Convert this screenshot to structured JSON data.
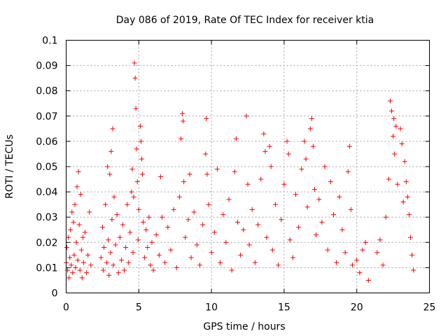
{
  "chart_data": {
    "type": "scatter",
    "title": "Day 086 of 2019, Rate Of TEC Index for receiver ktia",
    "xlabel": "GPS time / hours",
    "ylabel": "ROTI / TECUs",
    "xlim": [
      0,
      25
    ],
    "ylim": [
      0,
      0.1
    ],
    "x_ticks": [
      0,
      5,
      10,
      15,
      20,
      25
    ],
    "x_tick_labels": [
      "0",
      "5",
      "10",
      "15",
      "20",
      "25"
    ],
    "y_ticks": [
      0,
      0.01,
      0.02,
      0.03,
      0.04,
      0.05,
      0.06,
      0.07,
      0.08,
      0.09,
      0.1
    ],
    "y_tick_labels": [
      "0",
      "0.01",
      "0.02",
      "0.03",
      "0.04",
      "0.05",
      "0.06",
      "0.07",
      "0.08",
      "0.09",
      "0.1"
    ],
    "grid": true,
    "marker": "+",
    "color": "#ff0000",
    "series": [
      {
        "name": "ROTI",
        "points": [
          [
            0.0,
            0.012
          ],
          [
            0.05,
            0.018
          ],
          [
            0.1,
            0.009
          ],
          [
            0.15,
            0.022
          ],
          [
            0.2,
            0.006
          ],
          [
            0.25,
            0.014
          ],
          [
            0.3,
            0.025
          ],
          [
            0.35,
            0.011
          ],
          [
            0.4,
            0.032
          ],
          [
            0.45,
            0.008
          ],
          [
            0.5,
            0.028
          ],
          [
            0.55,
            0.015
          ],
          [
            0.6,
            0.035
          ],
          [
            0.65,
            0.01
          ],
          [
            0.7,
            0.02
          ],
          [
            0.75,
            0.042
          ],
          [
            0.8,
            0.013
          ],
          [
            0.85,
            0.048
          ],
          [
            0.9,
            0.027
          ],
          [
            0.95,
            0.009
          ],
          [
            1.0,
            0.039
          ],
          [
            1.05,
            0.017
          ],
          [
            1.1,
            0.006
          ],
          [
            1.15,
            0.022
          ],
          [
            1.2,
            0.012
          ],
          [
            1.3,
            0.024
          ],
          [
            1.4,
            0.008
          ],
          [
            1.5,
            0.015
          ],
          [
            1.6,
            0.032
          ],
          [
            1.7,
            0.011
          ],
          [
            2.4,
            0.014
          ],
          [
            2.5,
            0.026
          ],
          [
            2.55,
            0.009
          ],
          [
            2.6,
            0.018
          ],
          [
            2.7,
            0.035
          ],
          [
            2.8,
            0.012
          ],
          [
            2.85,
            0.05
          ],
          [
            2.9,
            0.021
          ],
          [
            2.95,
            0.007
          ],
          [
            3.0,
            0.047
          ],
          [
            3.05,
            0.016
          ],
          [
            3.1,
            0.056
          ],
          [
            3.15,
            0.029
          ],
          [
            3.2,
            0.065
          ],
          [
            3.25,
            0.011
          ],
          [
            3.3,
            0.038
          ],
          [
            3.4,
            0.019
          ],
          [
            3.5,
            0.031
          ],
          [
            3.6,
            0.008
          ],
          [
            3.7,
            0.022
          ],
          [
            3.8,
            0.013
          ],
          [
            3.9,
            0.027
          ],
          [
            4.0,
            0.009
          ],
          [
            4.1,
            0.018
          ],
          [
            4.2,
            0.035
          ],
          [
            4.3,
            0.012
          ],
          [
            4.4,
            0.024
          ],
          [
            4.5,
            0.04
          ],
          [
            4.55,
            0.049
          ],
          [
            4.6,
            0.016
          ],
          [
            4.65,
            0.038
          ],
          [
            4.7,
            0.091
          ],
          [
            4.75,
            0.085
          ],
          [
            4.8,
            0.073
          ],
          [
            4.85,
            0.057
          ],
          [
            4.9,
            0.044
          ],
          [
            4.95,
            0.021
          ],
          [
            5.0,
            0.033
          ],
          [
            5.1,
            0.066
          ],
          [
            5.15,
            0.06
          ],
          [
            5.2,
            0.053
          ],
          [
            5.25,
            0.047
          ],
          [
            5.3,
            0.028
          ],
          [
            5.4,
            0.014
          ],
          [
            5.5,
            0.025
          ],
          [
            5.6,
            0.018
          ],
          [
            5.7,
            0.03
          ],
          [
            5.8,
            0.011
          ],
          [
            5.9,
            0.02
          ],
          [
            6.0,
            0.009
          ],
          [
            6.2,
            0.023
          ],
          [
            6.4,
            0.015
          ],
          [
            6.5,
            0.046
          ],
          [
            6.6,
            0.03
          ],
          [
            6.8,
            0.012
          ],
          [
            7.0,
            0.026
          ],
          [
            7.2,
            0.017
          ],
          [
            7.4,
            0.033
          ],
          [
            7.6,
            0.01
          ],
          [
            7.8,
            0.038
          ],
          [
            7.9,
            0.061
          ],
          [
            8.0,
            0.071
          ],
          [
            8.05,
            0.068
          ],
          [
            8.1,
            0.044
          ],
          [
            8.2,
            0.022
          ],
          [
            8.4,
            0.029
          ],
          [
            8.5,
            0.047
          ],
          [
            8.6,
            0.014
          ],
          [
            8.8,
            0.032
          ],
          [
            9.0,
            0.019
          ],
          [
            9.2,
            0.011
          ],
          [
            9.4,
            0.027
          ],
          [
            9.6,
            0.055
          ],
          [
            9.65,
            0.069
          ],
          [
            9.7,
            0.047
          ],
          [
            9.8,
            0.035
          ],
          [
            10.0,
            0.016
          ],
          [
            10.2,
            0.024
          ],
          [
            10.4,
            0.049
          ],
          [
            10.6,
            0.012
          ],
          [
            10.8,
            0.031
          ],
          [
            11.0,
            0.02
          ],
          [
            11.2,
            0.037
          ],
          [
            11.4,
            0.009
          ],
          [
            11.6,
            0.048
          ],
          [
            11.7,
            0.061
          ],
          [
            11.8,
            0.028
          ],
          [
            12.0,
            0.015
          ],
          [
            12.2,
            0.025
          ],
          [
            12.4,
            0.07
          ],
          [
            12.5,
            0.043
          ],
          [
            12.6,
            0.019
          ],
          [
            12.8,
            0.033
          ],
          [
            13.0,
            0.012
          ],
          [
            13.2,
            0.027
          ],
          [
            13.4,
            0.045
          ],
          [
            13.6,
            0.063
          ],
          [
            13.7,
            0.056
          ],
          [
            13.8,
            0.022
          ],
          [
            14.0,
            0.058
          ],
          [
            14.1,
            0.05
          ],
          [
            14.2,
            0.017
          ],
          [
            14.4,
            0.035
          ],
          [
            14.6,
            0.011
          ],
          [
            14.8,
            0.029
          ],
          [
            15.0,
            0.043
          ],
          [
            15.2,
            0.06
          ],
          [
            15.3,
            0.055
          ],
          [
            15.4,
            0.021
          ],
          [
            15.6,
            0.014
          ],
          [
            15.8,
            0.039
          ],
          [
            16.0,
            0.026
          ],
          [
            16.2,
            0.049
          ],
          [
            16.4,
            0.06
          ],
          [
            16.5,
            0.053
          ],
          [
            16.6,
            0.034
          ],
          [
            16.8,
            0.065
          ],
          [
            16.9,
            0.069
          ],
          [
            17.0,
            0.058
          ],
          [
            17.1,
            0.041
          ],
          [
            17.2,
            0.023
          ],
          [
            17.4,
            0.037
          ],
          [
            17.6,
            0.028
          ],
          [
            17.8,
            0.05
          ],
          [
            18.0,
            0.017
          ],
          [
            18.2,
            0.044
          ],
          [
            18.4,
            0.031
          ],
          [
            18.6,
            0.012
          ],
          [
            18.8,
            0.038
          ],
          [
            19.0,
            0.025
          ],
          [
            19.2,
            0.016
          ],
          [
            19.4,
            0.048
          ],
          [
            19.5,
            0.058
          ],
          [
            19.6,
            0.033
          ],
          [
            19.7,
            0.011
          ],
          [
            20.0,
            0.013
          ],
          [
            20.2,
            0.008
          ],
          [
            20.4,
            0.017
          ],
          [
            20.6,
            0.02
          ],
          [
            20.8,
            0.005
          ],
          [
            21.4,
            0.016
          ],
          [
            21.6,
            0.021
          ],
          [
            21.8,
            0.011
          ],
          [
            22.0,
            0.03
          ],
          [
            22.2,
            0.045
          ],
          [
            22.3,
            0.076
          ],
          [
            22.4,
            0.072
          ],
          [
            22.5,
            0.062
          ],
          [
            22.55,
            0.069
          ],
          [
            22.6,
            0.055
          ],
          [
            22.7,
            0.066
          ],
          [
            22.8,
            0.043
          ],
          [
            23.0,
            0.065
          ],
          [
            23.1,
            0.059
          ],
          [
            23.2,
            0.036
          ],
          [
            23.3,
            0.052
          ],
          [
            23.4,
            0.044
          ],
          [
            23.5,
            0.038
          ],
          [
            23.6,
            0.031
          ],
          [
            23.7,
            0.022
          ],
          [
            23.8,
            0.015
          ],
          [
            23.9,
            0.009
          ]
        ]
      }
    ]
  }
}
